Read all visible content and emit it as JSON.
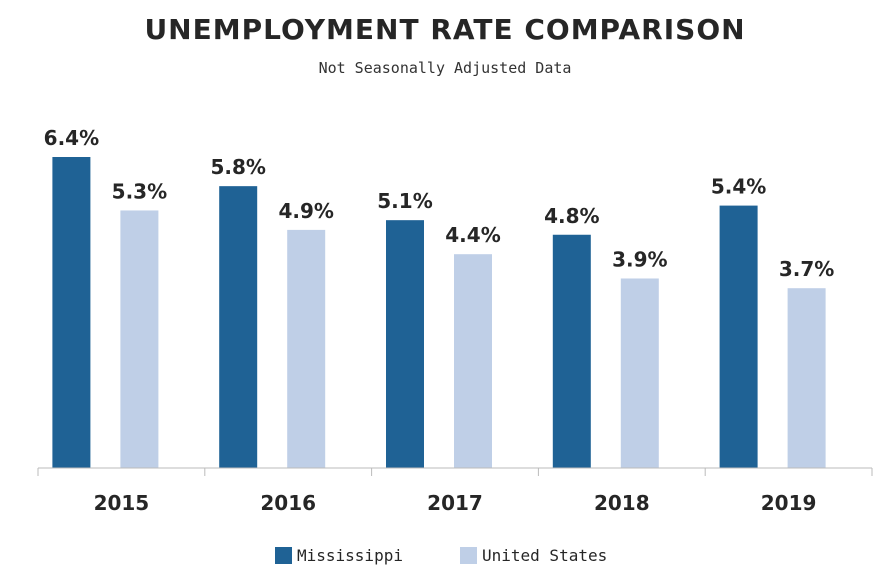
{
  "chart_data": {
    "type": "bar",
    "title": "UNEMPLOYMENT RATE COMPARISON",
    "subtitle": "Not Seasonally Adjusted Data",
    "xlabel": "",
    "ylabel": "",
    "categories": [
      "2015",
      "2016",
      "2017",
      "2018",
      "2019"
    ],
    "series": [
      {
        "name": "Mississippi",
        "values": [
          6.4,
          5.8,
          5.1,
          4.8,
          5.4
        ],
        "color": "#1f6295"
      },
      {
        "name": "United States",
        "values": [
          5.3,
          4.9,
          4.4,
          3.9,
          3.7
        ],
        "color": "#bfcfe7"
      }
    ],
    "value_suffix": "%",
    "ylim": [
      0,
      6.4
    ],
    "grid": false,
    "legend_position": "bottom-center",
    "axis_color": "#bbbbbb"
  }
}
